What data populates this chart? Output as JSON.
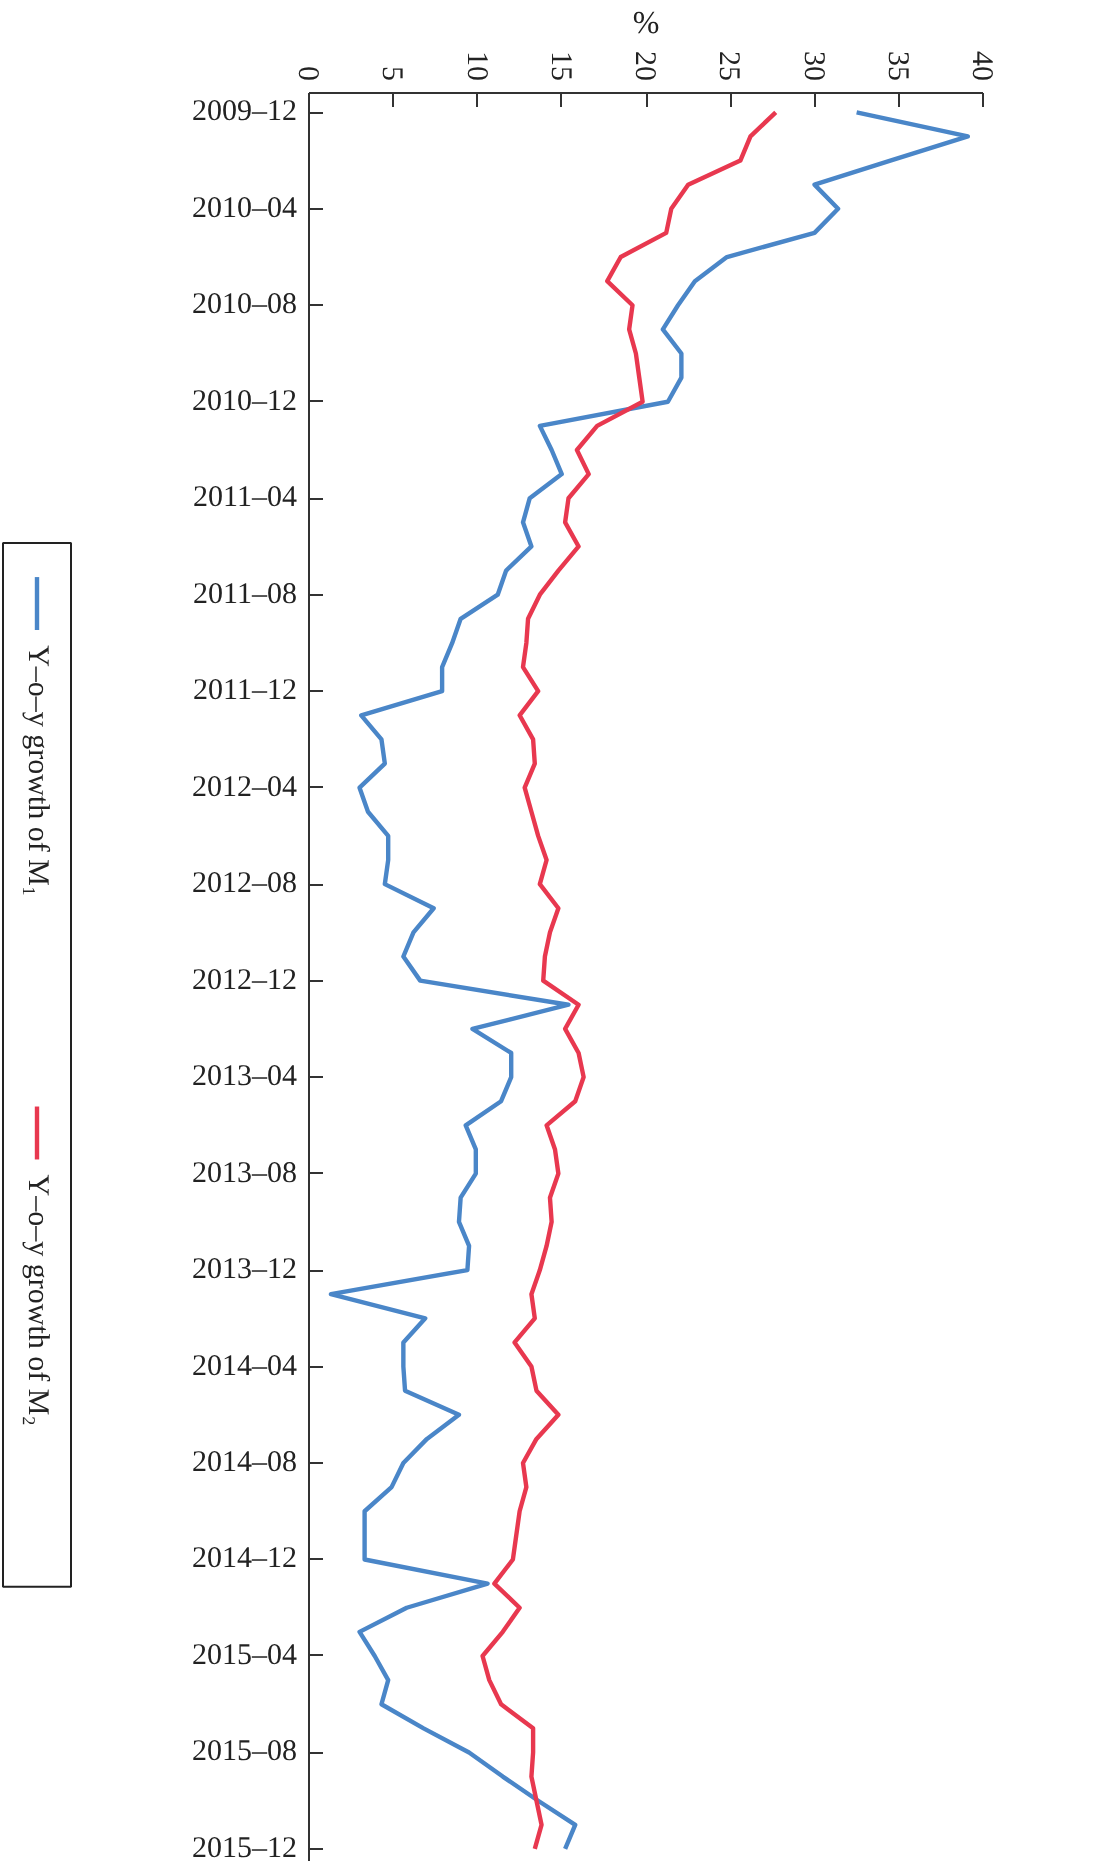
{
  "chart_data": {
    "type": "line",
    "xlabel": "%",
    "orientation": "horizontal",
    "categories": [
      "2009–12",
      null,
      null,
      null,
      "2010–04",
      null,
      null,
      null,
      "2010–08",
      null,
      null,
      null,
      "2010–12",
      null,
      null,
      null,
      "2011–04",
      null,
      null,
      null,
      "2011–08",
      null,
      null,
      null,
      "2011–12",
      null,
      null,
      null,
      "2012–04",
      null,
      null,
      null,
      "2012–08",
      null,
      null,
      null,
      "2012–12",
      null,
      null,
      null,
      "2013–04",
      null,
      null,
      null,
      "2013–08",
      null,
      null,
      null,
      "2013–12",
      null,
      null,
      null,
      "2014–04",
      null,
      null,
      null,
      "2014–08",
      null,
      null,
      null,
      "2014–12",
      null,
      null,
      null,
      "2015–04",
      null,
      null,
      null,
      "2015–08",
      null,
      null,
      null,
      "2015–12"
    ],
    "series": [
      {
        "name": "Y–o–y growth of M₁",
        "color": "#4a86c8",
        "values": [
          32.5,
          39.1,
          34.5,
          30.0,
          31.4,
          30.0,
          24.8,
          22.9,
          21.9,
          21.0,
          22.1,
          22.1,
          21.3,
          13.7,
          14.4,
          15.0,
          13.1,
          12.7,
          13.2,
          11.7,
          11.2,
          9.0,
          8.5,
          7.9,
          7.9,
          3.1,
          4.3,
          4.5,
          3.0,
          3.5,
          4.7,
          4.7,
          4.5,
          7.4,
          6.2,
          5.6,
          6.6,
          15.4,
          9.7,
          12.0,
          12.0,
          11.4,
          9.3,
          9.9,
          9.9,
          9.0,
          8.9,
          9.5,
          9.4,
          1.3,
          6.9,
          5.6,
          5.6,
          5.7,
          8.9,
          7.0,
          5.6,
          4.9,
          3.3,
          3.3,
          3.3,
          10.6,
          5.8,
          3.0,
          3.9,
          4.7,
          4.3,
          6.8,
          9.5,
          11.5,
          13.6,
          15.8,
          15.2
        ]
      },
      {
        "name": "Y–o–y growth of M₂",
        "color": "#e8384f",
        "values": [
          27.7,
          26.2,
          25.6,
          22.5,
          21.5,
          21.2,
          18.5,
          17.7,
          19.2,
          19.0,
          19.4,
          19.6,
          19.8,
          17.1,
          15.9,
          16.6,
          15.4,
          15.2,
          16.0,
          14.8,
          13.7,
          13.0,
          12.9,
          12.7,
          13.6,
          12.5,
          13.3,
          13.4,
          12.8,
          13.2,
          13.6,
          14.1,
          13.7,
          14.8,
          14.3,
          14.0,
          13.9,
          16.0,
          15.2,
          16.0,
          16.3,
          15.8,
          14.1,
          14.6,
          14.8,
          14.3,
          14.4,
          14.1,
          13.7,
          13.2,
          13.4,
          12.2,
          13.2,
          13.5,
          14.8,
          13.5,
          12.7,
          12.9,
          12.5,
          12.3,
          12.1,
          11.0,
          12.5,
          11.5,
          10.3,
          10.7,
          11.4,
          13.3,
          13.3,
          13.2,
          13.5,
          13.8,
          13.4
        ]
      }
    ],
    "xlim": [
      0,
      40
    ],
    "xticks": [
      0,
      5,
      10,
      15,
      20,
      25,
      30,
      35,
      40
    ],
    "legend": "bottom",
    "grid": false,
    "marker": "none",
    "line_style": "solid"
  }
}
